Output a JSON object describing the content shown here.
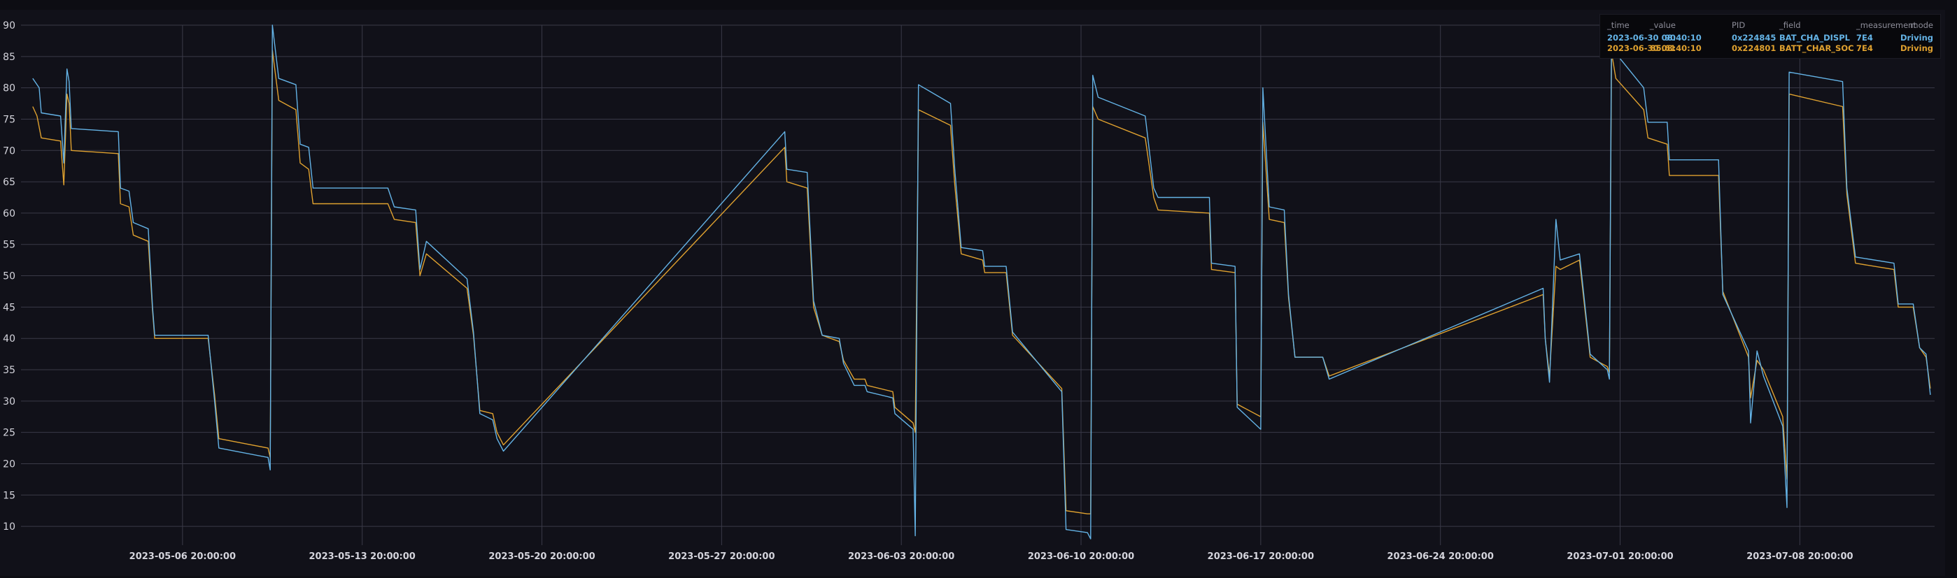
{
  "colors": {
    "series0": "#64b3e6",
    "series1": "#dfa12f",
    "grid": "#3a3a48",
    "background": "#111119"
  },
  "legend": {
    "headers": {
      "time": "_time",
      "value": "_value",
      "pid": "PID",
      "field": "_field",
      "measurement": "_measurement",
      "mode": "mode"
    },
    "rows": [
      {
        "time": "2023-06-30 08:40:10",
        "value": "90",
        "pid": "0x224845",
        "field": "BAT_CHA_DISPL",
        "measurement": "7E4",
        "mode": "Driving",
        "color": "#64b3e6"
      },
      {
        "time": "2023-06-30 08:40:10",
        "value": "85.61",
        "pid": "0x224801",
        "field": "BATT_CHAR_SOC",
        "measurement": "7E4",
        "mode": "Driving",
        "color": "#dfa12f"
      }
    ]
  },
  "chart_data": {
    "type": "line",
    "title": "",
    "xlabel": "",
    "ylabel": "",
    "ylim": [
      7,
      90
    ],
    "xlim": [
      "2023-04-30 13:00:00",
      "2023-07-14 02:00:00"
    ],
    "grid": true,
    "legend_placement": "top-right",
    "y_ticks": [
      "10",
      "15",
      "20",
      "25",
      "30",
      "35",
      "40",
      "45",
      "50",
      "55",
      "60",
      "65",
      "70",
      "75",
      "80",
      "85",
      "90"
    ],
    "x_ticks": [
      "2023-05-06 20:00:00",
      "2023-05-13 20:00:00",
      "2023-05-20 20:00:00",
      "2023-05-27 20:00:00",
      "2023-06-03 20:00:00",
      "2023-06-10 20:00:00",
      "2023-06-17 20:00:00",
      "2023-06-24 20:00:00",
      "2023-07-01 20:00:00",
      "2023-07-08 20:00:00"
    ],
    "series": [
      {
        "name": "BAT_CHA_DISPL",
        "color": "#64b3e6",
        "points": [
          [
            "2023-05-01 00:00",
            81.5
          ],
          [
            "2023-05-01 06:00",
            80.0
          ],
          [
            "2023-05-01 08:00",
            76.0
          ],
          [
            "2023-05-02 02:00",
            75.5
          ],
          [
            "2023-05-02 05:00",
            68.0
          ],
          [
            "2023-05-02 08:00",
            83.0
          ],
          [
            "2023-05-02 10:00",
            81.0
          ],
          [
            "2023-05-02 12:00",
            73.5
          ],
          [
            "2023-05-04 08:00",
            73.0
          ],
          [
            "2023-05-04 10:00",
            64.0
          ],
          [
            "2023-05-04 18:00",
            63.5
          ],
          [
            "2023-05-04 22:00",
            58.5
          ],
          [
            "2023-05-05 12:00",
            57.5
          ],
          [
            "2023-05-05 16:00",
            45.0
          ],
          [
            "2023-05-05 18:00",
            40.5
          ],
          [
            "2023-05-07 20:00",
            40.5
          ],
          [
            "2023-05-08 02:00",
            30.0
          ],
          [
            "2023-05-08 06:00",
            22.5
          ],
          [
            "2023-05-10 04:00",
            21.0
          ],
          [
            "2023-05-10 06:00",
            19.0
          ],
          [
            "2023-05-10 08:00",
            90.0
          ],
          [
            "2023-05-10 14:00",
            81.5
          ],
          [
            "2023-05-11 06:00",
            80.5
          ],
          [
            "2023-05-11 10:00",
            71.0
          ],
          [
            "2023-05-11 18:00",
            70.5
          ],
          [
            "2023-05-11 22:00",
            64.0
          ],
          [
            "2023-05-14 20:00",
            64.0
          ],
          [
            "2023-05-15 02:00",
            61.0
          ],
          [
            "2023-05-15 22:00",
            60.5
          ],
          [
            "2023-05-16 02:00",
            51.0
          ],
          [
            "2023-05-16 08:00",
            55.5
          ],
          [
            "2023-05-17 22:00",
            49.5
          ],
          [
            "2023-05-18 04:00",
            41.0
          ],
          [
            "2023-05-18 10:00",
            28.0
          ],
          [
            "2023-05-18 22:00",
            27.0
          ],
          [
            "2023-05-19 02:00",
            24.0
          ],
          [
            "2023-05-19 08:00",
            22.0
          ],
          [
            "2023-05-30 07:00",
            73.0
          ],
          [
            "2023-05-30 09:00",
            67.0
          ],
          [
            "2023-05-31 04:00",
            66.5
          ],
          [
            "2023-05-31 10:00",
            46.0
          ],
          [
            "2023-05-31 18:00",
            40.5
          ],
          [
            "2023-06-01 10:00",
            40.0
          ],
          [
            "2023-06-01 14:00",
            36.0
          ],
          [
            "2023-06-02 00:00",
            32.5
          ],
          [
            "2023-06-02 10:00",
            32.5
          ],
          [
            "2023-06-02 12:00",
            31.5
          ],
          [
            "2023-06-03 12:00",
            30.5
          ],
          [
            "2023-06-03 14:00",
            28.0
          ],
          [
            "2023-06-04 07:00",
            25.5
          ],
          [
            "2023-06-04 09:00",
            8.5
          ],
          [
            "2023-06-04 12:00",
            80.5
          ],
          [
            "2023-06-05 18:00",
            77.5
          ],
          [
            "2023-06-05 22:00",
            67.0
          ],
          [
            "2023-06-06 04:00",
            54.5
          ],
          [
            "2023-06-07 00:00",
            54.0
          ],
          [
            "2023-06-07 02:00",
            51.5
          ],
          [
            "2023-06-07 22:00",
            51.5
          ],
          [
            "2023-06-08 04:00",
            41.0
          ],
          [
            "2023-06-10 02:00",
            31.5
          ],
          [
            "2023-06-10 06:00",
            9.5
          ],
          [
            "2023-06-11 02:00",
            9.0
          ],
          [
            "2023-06-11 05:00",
            8.0
          ],
          [
            "2023-06-11 07:00",
            82.0
          ],
          [
            "2023-06-11 12:00",
            78.5
          ],
          [
            "2023-06-13 08:00",
            75.5
          ],
          [
            "2023-06-13 16:00",
            64.0
          ],
          [
            "2023-06-13 20:00",
            62.5
          ],
          [
            "2023-06-15 20:00",
            62.5
          ],
          [
            "2023-06-15 22:00",
            52.0
          ],
          [
            "2023-06-16 20:00",
            51.5
          ],
          [
            "2023-06-16 22:00",
            29.0
          ],
          [
            "2023-06-17 20:00",
            25.5
          ],
          [
            "2023-06-17 22:00",
            80.0
          ],
          [
            "2023-06-18 04:00",
            61.0
          ],
          [
            "2023-06-18 18:00",
            60.5
          ],
          [
            "2023-06-18 22:00",
            47.0
          ],
          [
            "2023-06-19 04:00",
            37.0
          ],
          [
            "2023-06-20 06:00",
            37.0
          ],
          [
            "2023-06-20 12:00",
            33.5
          ],
          [
            "2023-06-28 20:00",
            48.0
          ],
          [
            "2023-06-28 22:00",
            40.0
          ],
          [
            "2023-06-29 02:00",
            33.0
          ],
          [
            "2023-06-29 08:00",
            59.0
          ],
          [
            "2023-06-29 12:00",
            52.5
          ],
          [
            "2023-06-30 06:00",
            53.5
          ],
          [
            "2023-06-30 16:00",
            37.5
          ],
          [
            "2023-07-01 08:00",
            35.0
          ],
          [
            "2023-07-01 10:00",
            33.5
          ],
          [
            "2023-07-01 12:00",
            90.0
          ],
          [
            "2023-07-01 16:00",
            85.5
          ],
          [
            "2023-07-02 18:00",
            80.0
          ],
          [
            "2023-07-02 22:00",
            74.5
          ],
          [
            "2023-07-03 16:00",
            74.5
          ],
          [
            "2023-07-03 18:00",
            68.5
          ],
          [
            "2023-07-05 16:00",
            68.5
          ],
          [
            "2023-07-05 20:00",
            47.0
          ],
          [
            "2023-07-06 20:00",
            38.0
          ],
          [
            "2023-07-06 22:00",
            26.5
          ],
          [
            "2023-07-07 04:00",
            38.0
          ],
          [
            "2023-07-07 10:00",
            34.0
          ],
          [
            "2023-07-08 04:00",
            26.0
          ],
          [
            "2023-07-08 08:00",
            13.0
          ],
          [
            "2023-07-08 10:00",
            82.5
          ],
          [
            "2023-07-10 12:00",
            81.0
          ],
          [
            "2023-07-10 16:00",
            64.0
          ],
          [
            "2023-07-11 00:00",
            53.0
          ],
          [
            "2023-07-12 12:00",
            52.0
          ],
          [
            "2023-07-12 16:00",
            45.5
          ],
          [
            "2023-07-13 06:00",
            45.5
          ],
          [
            "2023-07-13 12:00",
            38.5
          ],
          [
            "2023-07-13 18:00",
            37.5
          ],
          [
            "2023-07-13 22:00",
            31.0
          ]
        ]
      },
      {
        "name": "BATT_CHAR_SOC",
        "color": "#dfa12f",
        "points": [
          [
            "2023-05-01 00:00",
            77.0
          ],
          [
            "2023-05-01 04:00",
            75.5
          ],
          [
            "2023-05-01 08:00",
            72.0
          ],
          [
            "2023-05-02 02:00",
            71.5
          ],
          [
            "2023-05-02 05:00",
            64.5
          ],
          [
            "2023-05-02 08:00",
            79.0
          ],
          [
            "2023-05-02 10:00",
            77.5
          ],
          [
            "2023-05-02 12:00",
            70.0
          ],
          [
            "2023-05-04 08:00",
            69.5
          ],
          [
            "2023-05-04 10:00",
            61.5
          ],
          [
            "2023-05-04 18:00",
            61.0
          ],
          [
            "2023-05-04 22:00",
            56.5
          ],
          [
            "2023-05-05 12:00",
            55.5
          ],
          [
            "2023-05-05 16:00",
            44.5
          ],
          [
            "2023-05-05 18:00",
            40.0
          ],
          [
            "2023-05-07 20:00",
            40.0
          ],
          [
            "2023-05-08 02:00",
            31.0
          ],
          [
            "2023-05-08 06:00",
            24.0
          ],
          [
            "2023-05-10 04:00",
            22.5
          ],
          [
            "2023-05-10 06:00",
            21.0
          ],
          [
            "2023-05-10 08:00",
            86.0
          ],
          [
            "2023-05-10 14:00",
            78.0
          ],
          [
            "2023-05-11 06:00",
            76.5
          ],
          [
            "2023-05-11 10:00",
            68.0
          ],
          [
            "2023-05-11 18:00",
            67.0
          ],
          [
            "2023-05-11 22:00",
            61.5
          ],
          [
            "2023-05-14 20:00",
            61.5
          ],
          [
            "2023-05-15 02:00",
            59.0
          ],
          [
            "2023-05-15 22:00",
            58.5
          ],
          [
            "2023-05-16 02:00",
            50.0
          ],
          [
            "2023-05-16 08:00",
            53.5
          ],
          [
            "2023-05-17 22:00",
            48.0
          ],
          [
            "2023-05-18 04:00",
            40.5
          ],
          [
            "2023-05-18 10:00",
            28.5
          ],
          [
            "2023-05-18 22:00",
            28.0
          ],
          [
            "2023-05-19 02:00",
            25.0
          ],
          [
            "2023-05-19 08:00",
            23.0
          ],
          [
            "2023-05-30 07:00",
            70.5
          ],
          [
            "2023-05-30 09:00",
            65.0
          ],
          [
            "2023-05-31 04:00",
            64.0
          ],
          [
            "2023-05-31 10:00",
            45.0
          ],
          [
            "2023-05-31 18:00",
            40.5
          ],
          [
            "2023-06-01 10:00",
            39.5
          ],
          [
            "2023-06-01 14:00",
            36.5
          ],
          [
            "2023-06-02 00:00",
            33.5
          ],
          [
            "2023-06-02 10:00",
            33.5
          ],
          [
            "2023-06-02 12:00",
            32.5
          ],
          [
            "2023-06-03 12:00",
            31.5
          ],
          [
            "2023-06-03 14:00",
            29.0
          ],
          [
            "2023-06-04 07:00",
            26.5
          ],
          [
            "2023-06-04 09:00",
            25.0
          ],
          [
            "2023-06-04 12:00",
            76.5
          ],
          [
            "2023-06-05 18:00",
            74.0
          ],
          [
            "2023-06-05 22:00",
            64.5
          ],
          [
            "2023-06-06 04:00",
            53.5
          ],
          [
            "2023-06-07 00:00",
            52.5
          ],
          [
            "2023-06-07 02:00",
            50.5
          ],
          [
            "2023-06-07 22:00",
            50.5
          ],
          [
            "2023-06-08 04:00",
            40.5
          ],
          [
            "2023-06-10 02:00",
            32.0
          ],
          [
            "2023-06-10 06:00",
            12.5
          ],
          [
            "2023-06-11 02:00",
            12.0
          ],
          [
            "2023-06-11 05:00",
            12.0
          ],
          [
            "2023-06-11 07:00",
            77.0
          ],
          [
            "2023-06-11 12:00",
            75.0
          ],
          [
            "2023-06-13 08:00",
            72.0
          ],
          [
            "2023-06-13 16:00",
            62.5
          ],
          [
            "2023-06-13 20:00",
            60.5
          ],
          [
            "2023-06-15 20:00",
            60.0
          ],
          [
            "2023-06-15 22:00",
            51.0
          ],
          [
            "2023-06-16 20:00",
            50.5
          ],
          [
            "2023-06-16 22:00",
            29.5
          ],
          [
            "2023-06-17 20:00",
            27.5
          ],
          [
            "2023-06-17 22:00",
            74.5
          ],
          [
            "2023-06-18 04:00",
            59.0
          ],
          [
            "2023-06-18 18:00",
            58.5
          ],
          [
            "2023-06-18 22:00",
            46.5
          ],
          [
            "2023-06-19 04:00",
            37.0
          ],
          [
            "2023-06-20 06:00",
            37.0
          ],
          [
            "2023-06-20 12:00",
            34.0
          ],
          [
            "2023-06-28 20:00",
            47.0
          ],
          [
            "2023-06-28 22:00",
            40.0
          ],
          [
            "2023-06-29 02:00",
            34.0
          ],
          [
            "2023-06-29 08:00",
            51.5
          ],
          [
            "2023-06-29 12:00",
            51.0
          ],
          [
            "2023-06-30 06:00",
            52.5
          ],
          [
            "2023-06-30 16:00",
            37.0
          ],
          [
            "2023-07-01 08:00",
            35.5
          ],
          [
            "2023-07-01 10:00",
            34.5
          ],
          [
            "2023-07-01 12:00",
            85.6
          ],
          [
            "2023-07-01 16:00",
            81.5
          ],
          [
            "2023-07-02 18:00",
            76.5
          ],
          [
            "2023-07-02 22:00",
            72.0
          ],
          [
            "2023-07-03 16:00",
            71.0
          ],
          [
            "2023-07-03 18:00",
            66.0
          ],
          [
            "2023-07-05 16:00",
            66.0
          ],
          [
            "2023-07-05 20:00",
            47.5
          ],
          [
            "2023-07-06 20:00",
            37.0
          ],
          [
            "2023-07-06 22:00",
            30.5
          ],
          [
            "2023-07-07 04:00",
            36.5
          ],
          [
            "2023-07-07 10:00",
            35.0
          ],
          [
            "2023-07-08 04:00",
            27.5
          ],
          [
            "2023-07-08 08:00",
            17.5
          ],
          [
            "2023-07-08 10:00",
            79.0
          ],
          [
            "2023-07-10 12:00",
            77.0
          ],
          [
            "2023-07-10 16:00",
            63.0
          ],
          [
            "2023-07-11 00:00",
            52.0
          ],
          [
            "2023-07-12 12:00",
            51.0
          ],
          [
            "2023-07-12 16:00",
            45.0
          ],
          [
            "2023-07-13 06:00",
            45.0
          ],
          [
            "2023-07-13 12:00",
            38.5
          ],
          [
            "2023-07-13 18:00",
            37.0
          ],
          [
            "2023-07-13 22:00",
            32.0
          ]
        ]
      }
    ]
  }
}
